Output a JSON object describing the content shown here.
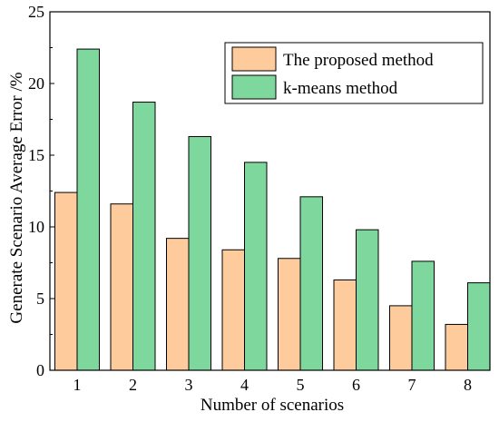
{
  "chart_data": {
    "type": "bar",
    "title": "",
    "xlabel": "Number of scenarios",
    "ylabel": "Generate Scenario Average Error /%",
    "categories": [
      "1",
      "2",
      "3",
      "4",
      "5",
      "6",
      "7",
      "8"
    ],
    "series": [
      {
        "name": "The proposed method",
        "values": [
          12.4,
          11.6,
          9.2,
          8.4,
          7.8,
          6.3,
          4.5,
          3.2
        ]
      },
      {
        "name": "k-means method",
        "values": [
          22.4,
          18.7,
          16.3,
          14.5,
          12.1,
          9.8,
          7.6,
          6.1
        ]
      }
    ],
    "ylim": [
      0,
      25
    ],
    "yticks": [
      "0",
      "5",
      "10",
      "15",
      "20",
      "25"
    ],
    "legend_position": "top-right",
    "grid": false,
    "colors": {
      "series": [
        "#FDCB9C",
        "#7ED89D"
      ],
      "edge": "#000000"
    }
  }
}
